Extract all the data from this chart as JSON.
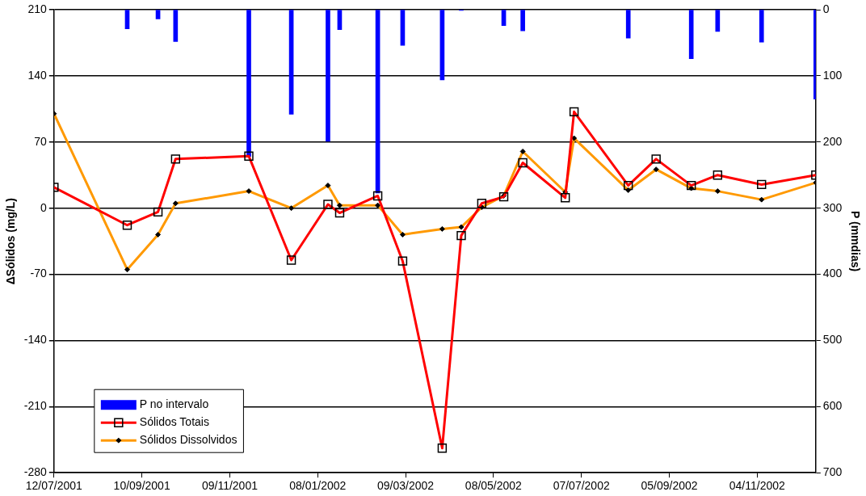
{
  "chart_data": {
    "type": "line",
    "ylabel": "ΔSólidos (mg/L)",
    "y2label": "P (mmdias)",
    "xlim": [
      "2001-07-12",
      "2002-12-14"
    ],
    "xticks": [
      {
        "value": "2001-07-12",
        "label": "12/07/2001"
      },
      {
        "value": "2001-09-10",
        "label": "10/09/2001"
      },
      {
        "value": "2001-11-09",
        "label": "09/11/2001"
      },
      {
        "value": "2002-01-08",
        "label": "08/01/2002"
      },
      {
        "value": "2002-03-09",
        "label": "09/03/2002"
      },
      {
        "value": "2002-05-08",
        "label": "08/05/2002"
      },
      {
        "value": "2002-07-07",
        "label": "07/07/2002"
      },
      {
        "value": "2002-09-05",
        "label": "05/09/2002"
      },
      {
        "value": "2002-11-04",
        "label": "04/11/2002"
      }
    ],
    "ylim": [
      -280,
      210
    ],
    "yticks": [
      -280,
      -210,
      -140,
      -70,
      0,
      70,
      140,
      210
    ],
    "y2lim": [
      700,
      0
    ],
    "y2ticks": [
      0,
      100,
      200,
      300,
      400,
      500,
      600,
      700
    ],
    "grid": "y",
    "legend": "bottom left",
    "series": [
      {
        "name": "P no intervalo",
        "type": "bar",
        "axis": "y2",
        "color": "#0000ff",
        "x": [
          "2001-08-31",
          "2001-09-21",
          "2001-10-03",
          "2001-11-22",
          "2001-12-21",
          "2002-01-15",
          "2002-01-23",
          "2002-02-18",
          "2002-03-07",
          "2002-04-03",
          "2002-04-16",
          "2002-05-15",
          "2002-05-28",
          "2002-08-08",
          "2002-09-20",
          "2002-10-08",
          "2002-11-07",
          "2002-12-14"
        ],
        "values": [
          29,
          14,
          48,
          222,
          158,
          199,
          30,
          277,
          54,
          106,
          1,
          24,
          32,
          43,
          74,
          33,
          49,
          135
        ]
      },
      {
        "name": "Sólidos Totais",
        "color": "#ff0000",
        "marker": "square",
        "x": [
          "2001-07-12",
          "2001-08-31",
          "2001-09-21",
          "2001-10-03",
          "2001-11-22",
          "2001-12-21",
          "2002-01-15",
          "2002-01-23",
          "2002-02-18",
          "2002-03-07",
          "2002-04-03",
          "2002-04-16",
          "2002-04-30",
          "2002-05-15",
          "2002-05-28",
          "2002-06-26",
          "2002-07-02",
          "2002-08-08",
          "2002-08-27",
          "2002-09-20",
          "2002-10-08",
          "2002-11-07",
          "2002-12-14"
        ],
        "values": [
          22,
          -18,
          -4,
          52,
          55,
          -55,
          4,
          -5,
          13,
          -56,
          -254,
          -29,
          5,
          12,
          48,
          11,
          102,
          24,
          52,
          24,
          35,
          25,
          35
        ]
      },
      {
        "name": "Sólidos Dissolvidos",
        "color": "#ff9900",
        "marker": "diamond",
        "x": [
          "2001-07-12",
          "2001-08-31",
          "2001-09-21",
          "2001-10-03",
          "2001-11-22",
          "2001-12-21",
          "2002-01-15",
          "2002-01-23",
          "2002-02-18",
          "2002-03-07",
          "2002-04-03",
          "2002-04-16",
          "2002-04-30",
          "2002-05-15",
          "2002-05-28",
          "2002-06-26",
          "2002-07-02",
          "2002-08-08",
          "2002-08-27",
          "2002-09-20",
          "2002-10-08",
          "2002-11-07",
          "2002-12-14"
        ],
        "values": [
          100,
          -65,
          -28,
          5,
          18,
          0,
          24,
          3,
          3,
          -28,
          -22,
          -20,
          1,
          13,
          60,
          17,
          74,
          19,
          41,
          21,
          18,
          9,
          27
        ]
      }
    ]
  }
}
